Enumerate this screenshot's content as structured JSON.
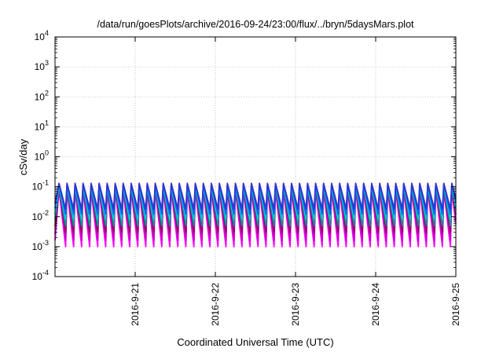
{
  "chart_data": {
    "type": "line",
    "title": "/data/run/goesPlots/archive/2016-09-24/23:00/flux/../bryn/5daysMars.plot",
    "xlabel": "Coordinated Universal Time (UTC)",
    "ylabel": "cSv/day",
    "x_range": [
      "2016-09-20",
      "2016-09-25"
    ],
    "y_range": [
      0.0001,
      10000
    ],
    "y_scale": "log",
    "grid": true,
    "legend": "none",
    "x_ticks": [
      "2016-9-21",
      "2016-9-22",
      "2016-9-23",
      "2016-9-24",
      "2016-9-25"
    ],
    "y_ticks": [
      {
        "base": "10",
        "exp": "-4"
      },
      {
        "base": "10",
        "exp": "-3"
      },
      {
        "base": "10",
        "exp": "-2"
      },
      {
        "base": "10",
        "exp": "-1"
      },
      {
        "base": "10",
        "exp": "0"
      },
      {
        "base": "10",
        "exp": "1"
      },
      {
        "base": "10",
        "exp": "2"
      },
      {
        "base": "10",
        "exp": "3"
      },
      {
        "base": "10",
        "exp": "4"
      }
    ],
    "periodic_pattern": {
      "cycles_per_day": 10,
      "first_peak_day_offset": 0.05
    },
    "series": [
      {
        "color": "#ff00ff",
        "peak": 0.08,
        "trough": 0.001
      },
      {
        "color": "#cc00cc",
        "peak": 0.09,
        "trough": 0.0016
      },
      {
        "color": "#990066",
        "peak": 0.1,
        "trough": 0.003
      },
      {
        "color": "#009999",
        "peak": 0.1,
        "trough": 0.005
      },
      {
        "color": "#00cccc",
        "peak": 0.11,
        "trough": 0.008
      },
      {
        "color": "#0066ff",
        "peak": 0.12,
        "trough": 0.012
      },
      {
        "color": "#3333cc",
        "peak": 0.13,
        "trough": 0.018
      }
    ]
  }
}
